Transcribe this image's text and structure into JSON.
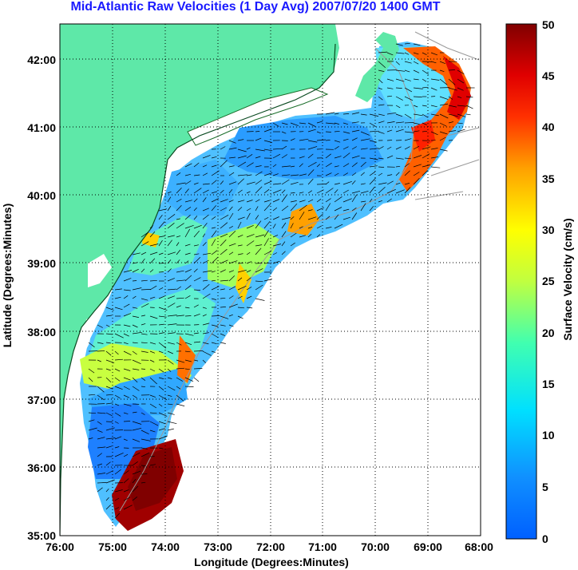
{
  "title": "Mid-Atlantic Raw Velocities (1 Day Avg) 2007/07/20 1400 GMT",
  "map": {
    "xlabel": "Longitude (Degrees:Minutes)",
    "ylabel": "Latitude (Degrees:Minutes)",
    "x_ticks": [
      "76:00",
      "75:00",
      "74:00",
      "73:00",
      "72:00",
      "71:00",
      "70:00",
      "69:00",
      "68:00"
    ],
    "y_ticks": [
      "42:00",
      "41:00",
      "40:00",
      "39:00",
      "38:00",
      "37:00",
      "36:00",
      "35:00"
    ],
    "lon_range": [
      -76,
      -68
    ],
    "lat_range": [
      35,
      42.5
    ],
    "land_color": "#5ee8a8",
    "grid": true
  },
  "colorbar": {
    "label": "Surface Velocity (cm/s)",
    "ticks": [
      "50",
      "45",
      "40",
      "35",
      "30",
      "25",
      "20",
      "15",
      "10",
      "5",
      "0"
    ],
    "range": [
      0,
      50
    ],
    "colormap": "jet"
  }
}
